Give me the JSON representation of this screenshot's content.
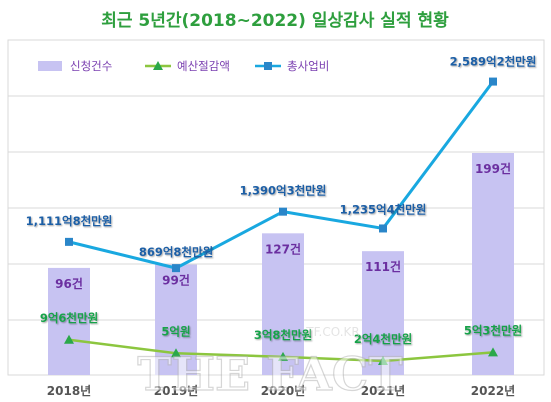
{
  "chart_data": {
    "type": "bar+line",
    "title": "최근 5년간(2018~2022) 일상감사 실적 현황",
    "categories": [
      "2018년",
      "2019년",
      "2020년",
      "2021년",
      "2022년"
    ],
    "legend_position": "top-left",
    "grid": true,
    "bar_series": {
      "name": "신청건수",
      "color": "#c7c3f2",
      "values": [
        96,
        99,
        127,
        111,
        199
      ],
      "labels": [
        "96건",
        "99건",
        "127건",
        "111건",
        "199건"
      ],
      "label_color": "#6b2fa0"
    },
    "line_series": [
      {
        "name": "예산절감액",
        "color": "#8cc63f",
        "label_color": "#17a24a",
        "marker": "triangle",
        "values": [
          96000,
          50000,
          38000,
          24000,
          53000
        ],
        "labels": [
          "9억6천만원",
          "5억원",
          "3억8천만원",
          "2억4천만원",
          "5억3천만원"
        ]
      },
      {
        "name": "총사업비",
        "color": "#19a8e0",
        "label_color": "#1f5fa6",
        "marker": "square",
        "values": [
          1111.8,
          869.8,
          1390.3,
          1235.4,
          2589.2
        ],
        "labels": [
          "1,111억8천만원",
          "869억8천만원",
          "1,390억3천만원",
          "1,235억4천만원",
          "2,589억2천만원"
        ]
      }
    ]
  },
  "watermark": {
    "main": "THE FACT",
    "sub": "TF.CO.KR"
  }
}
